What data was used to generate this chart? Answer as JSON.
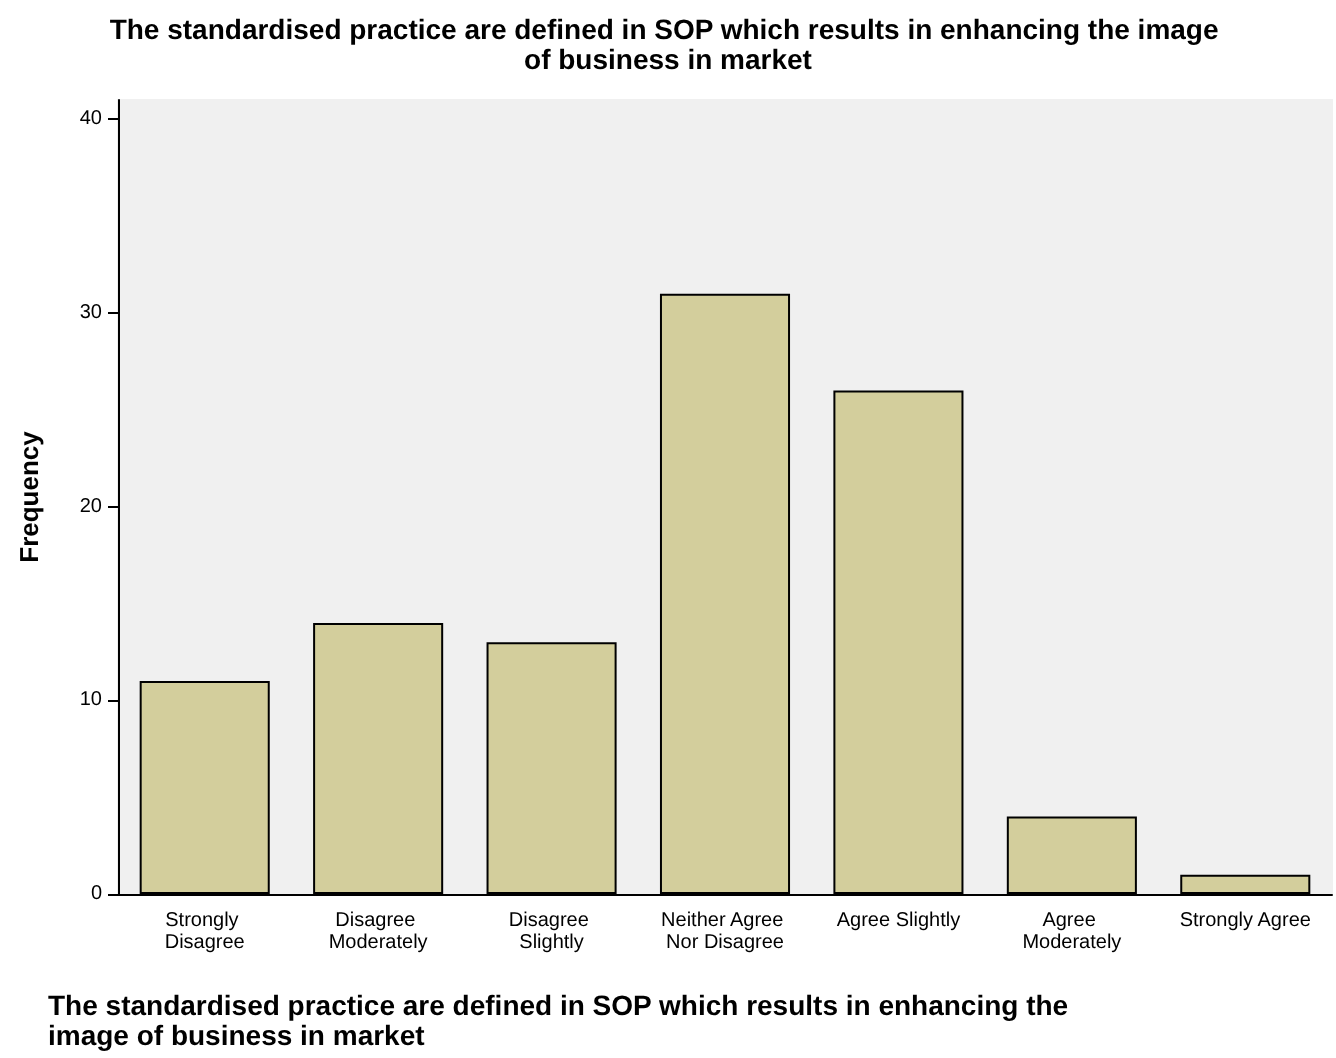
{
  "chart_data": {
    "type": "bar",
    "title": "The standardised practice are defined in SOP which results in enhancing the image of business in market",
    "xlabel": "The standardised practice are defined in SOP which results in enhancing the image of business in market",
    "ylabel": "Frequency",
    "categories": [
      "Strongly Disagree",
      "Disagree Moderately",
      "Disagree Slightly",
      "Neither Agree Nor Disagree",
      "Agree Slightly",
      "Agree Moderately",
      "Strongly Agree"
    ],
    "values": [
      11,
      14,
      13,
      31,
      26,
      4,
      1
    ],
    "color": "#d3ce9c",
    "ylim": [
      0,
      41
    ],
    "yticks": [
      0,
      10,
      20,
      30,
      40
    ],
    "grid": false
  }
}
